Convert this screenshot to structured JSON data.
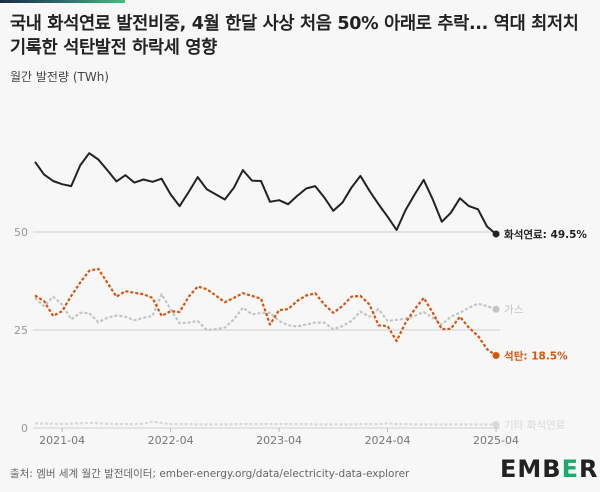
{
  "title": "국내 화석연료 발전비중, 4월 한달 사상 처음 50% 아래로 추락... 역대 최저치 기록한 석탄발전 하락세 영향",
  "subtitle": "월간 발전량 (TWh)",
  "source": "출처: 엠버 세계 월간 발전데이터; ember-energy.org/data/electricity-data-explorer",
  "logo": "EMBER",
  "chart_data": {
    "type": "line",
    "x_start": "2021-01",
    "x_end": "2025-04",
    "x_ticks": [
      "2021-04",
      "2022-04",
      "2023-04",
      "2024-04",
      "2025-04"
    ],
    "y_ticks": [
      0,
      25,
      50
    ],
    "ylim": [
      0,
      75
    ],
    "grid": "horizontal at ticks",
    "series": [
      {
        "name": "화석연료",
        "end_label": "화석연료: 49.5%",
        "color": "#222222",
        "dash": false,
        "values": [
          67.9,
          64.7,
          63.0,
          62.2,
          61.7,
          67.0,
          70.1,
          68.5,
          65.8,
          62.9,
          64.5,
          62.6,
          63.4,
          62.8,
          63.6,
          59.6,
          56.6,
          60.2,
          64.0,
          60.9,
          59.6,
          58.3,
          61.3,
          65.8,
          63.1,
          63.0,
          57.7,
          58.1,
          57.1,
          59.2,
          61.1,
          61.7,
          58.8,
          55.4,
          57.5,
          61.3,
          64.3,
          60.5,
          57.1,
          53.9,
          50.5,
          55.6,
          59.6,
          63.3,
          58.3,
          52.6,
          54.9,
          58.6,
          56.6,
          55.8,
          51.4,
          49.5
        ]
      },
      {
        "name": "가스",
        "end_label": "가스",
        "color": "#c4c4c4",
        "dash": true,
        "values": [
          33.2,
          31.1,
          33.5,
          31.5,
          27.7,
          29.4,
          29.3,
          27.0,
          28.1,
          28.7,
          28.4,
          27.5,
          28.1,
          28.6,
          34.1,
          30.3,
          26.7,
          26.9,
          27.3,
          25.0,
          25.2,
          25.6,
          27.7,
          30.7,
          29.0,
          29.3,
          29.4,
          27.3,
          26.2,
          25.9,
          26.4,
          26.9,
          26.9,
          25.2,
          26.0,
          27.3,
          29.7,
          28.4,
          30.3,
          27.3,
          27.6,
          27.9,
          28.6,
          29.6,
          28.1,
          26.4,
          28.4,
          29.4,
          30.7,
          31.7,
          31.1,
          30.3
        ]
      },
      {
        "name": "석탄",
        "end_label": "석탄: 18.5%",
        "color": "#d4560f",
        "dash": true,
        "values": [
          33.8,
          32.4,
          28.6,
          29.8,
          33.7,
          37.1,
          40.1,
          40.6,
          37.1,
          33.5,
          34.9,
          34.5,
          34.1,
          33.2,
          28.6,
          29.8,
          29.6,
          33.5,
          36.1,
          35.4,
          33.8,
          32.1,
          33.2,
          34.4,
          33.7,
          33.0,
          26.4,
          30.1,
          30.3,
          32.4,
          33.8,
          34.4,
          31.5,
          29.4,
          31.1,
          33.5,
          33.7,
          31.5,
          26.2,
          26.0,
          22.2,
          26.9,
          30.3,
          33.2,
          29.4,
          25.2,
          25.3,
          28.4,
          25.6,
          23.5,
          20.1,
          18.5
        ]
      },
      {
        "name": "기타 화석연료",
        "end_label": "기타 화석연료",
        "color": "#d8d8d8",
        "dash": true,
        "values": [
          1.2,
          1.1,
          1.1,
          1.0,
          1.1,
          1.2,
          1.3,
          1.2,
          1.1,
          1.0,
          1.0,
          1.0,
          1.1,
          1.6,
          1.3,
          1.0,
          1.0,
          1.0,
          0.9,
          0.9,
          0.9,
          0.9,
          1.0,
          1.0,
          1.0,
          1.0,
          1.0,
          1.0,
          1.0,
          1.0,
          1.0,
          0.9,
          0.9,
          0.9,
          0.9,
          0.9,
          1.0,
          1.0,
          1.0,
          1.2,
          1.0,
          1.0,
          0.9,
          0.9,
          0.9,
          0.9,
          0.9,
          0.9,
          0.9,
          0.9,
          0.9,
          0.9
        ]
      }
    ]
  }
}
